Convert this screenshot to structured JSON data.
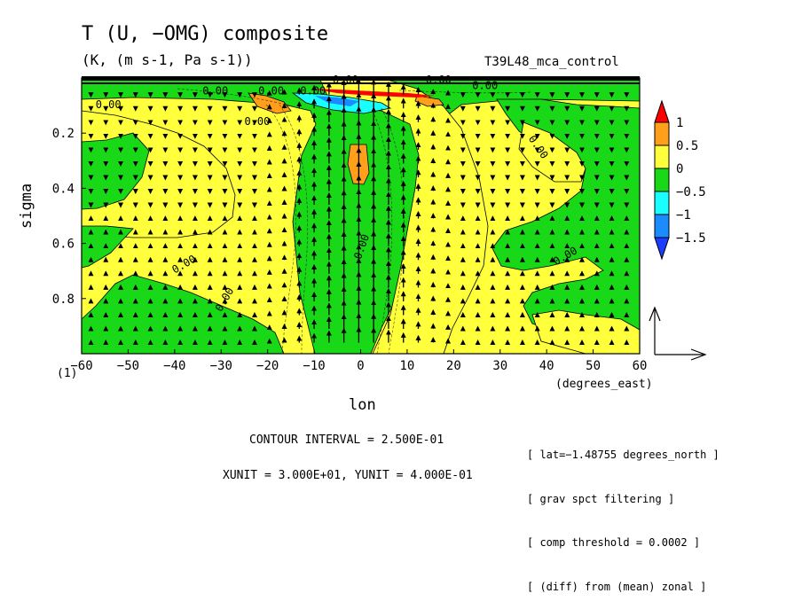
{
  "chart_data": {
    "type": "contour",
    "title": "T (U, −OMG) composite",
    "subtitle": "(K, (m s-1, Pa s-1))",
    "dataset": "T39L48_mca_control",
    "xlabel": "lon",
    "xunit": "(degrees_east)",
    "ylabel": "sigma",
    "level_label": "(1)",
    "xlim": [
      -60,
      60
    ],
    "ylim": [
      1.0,
      0.0
    ],
    "x_ticks": [
      -60,
      -50,
      -40,
      -30,
      -20,
      -10,
      0,
      10,
      20,
      30,
      40,
      50,
      60
    ],
    "y_ticks": [
      0.2,
      0.4,
      0.6,
      0.8
    ],
    "colorbar": {
      "labels": [
        "1",
        "0.5",
        "0",
        "−0.5",
        "−1",
        "−1.5"
      ],
      "colors": [
        "#ff0000",
        "#ff9f1a",
        "#ffff3c",
        "#18d818",
        "#19ffff",
        "#1a8cff",
        "#1a3dff"
      ]
    },
    "contour_labels": [
      "0.00",
      "0.00",
      "0.00",
      "0.00",
      "0.00",
      "0.00",
      "0.00",
      "0.00",
      "0.00",
      "0.00",
      "0.00",
      "0.00",
      "0.00"
    ],
    "contour_interval": "CONTOUR INTERVAL = 2.500E-01",
    "vector_units": "XUNIT = 3.000E+01, YUNIT = 4.000E-01",
    "notes": [
      "[ lat=−1.48755 degrees_north ]",
      "[ grav spct filtering ]",
      "[ comp threshold = 0.0002 ]",
      "[ (diff) from (mean) zonal ]"
    ],
    "colors": {
      "positive_high": "#ff9f1a",
      "positive": "#ffff3c",
      "negative": "#18d818",
      "negative_strong": "#19ffff",
      "negative_stronger": "#1a8cff",
      "max": "#ff0000"
    }
  }
}
